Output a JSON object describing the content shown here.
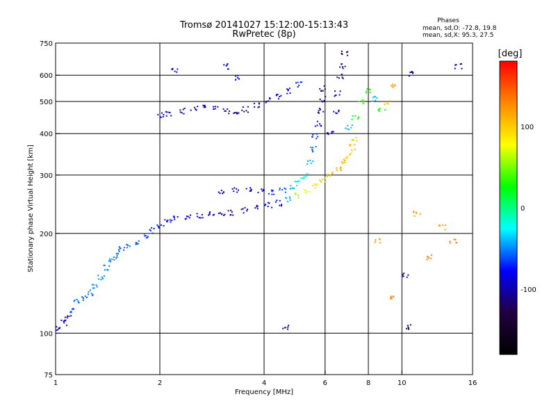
{
  "chart_data": {
    "type": "scatter",
    "title": "Tromsø 20141027 15:12:00-15:13:43",
    "subtitle": "RwPretec (8p)",
    "xlabel": "Frequency [MHz]",
    "ylabel": "Stationary phase Virtual Height [km]",
    "x_scale": "log",
    "y_scale": "log",
    "xlim": [
      1,
      16
    ],
    "ylim": [
      75,
      750
    ],
    "x_ticks": [
      "1",
      "2",
      "4",
      "6",
      "8",
      "10",
      "16"
    ],
    "y_ticks": [
      "75",
      "100",
      "200",
      "300",
      "400",
      "500",
      "600",
      "750"
    ],
    "x_grid": [
      2,
      4,
      6,
      8,
      10
    ],
    "y_grid": [
      100,
      200,
      300,
      400,
      500,
      600
    ],
    "grid": true,
    "stats": {
      "heading": "Phases",
      "line1": "mean, sd,O: -72.8, 19.8",
      "line2": "mean, sd,X:  95.3, 27.5"
    },
    "colorbar": {
      "label": "[deg]",
      "range": [
        -180,
        180
      ],
      "ticks": [
        "100",
        "0",
        "-100"
      ],
      "tick_values": [
        100,
        0,
        -100
      ],
      "colors": [
        "#ff0000",
        "#ff8800",
        "#ffff00",
        "#00ff00",
        "#00ffff",
        "#0000ff",
        "#200040",
        "#000000"
      ]
    },
    "series": [
      {
        "role": "o-mode low trace",
        "points": [
          [
            1.02,
            104,
            -100
          ],
          [
            1.05,
            108,
            -95
          ],
          [
            1.08,
            112,
            -100
          ],
          [
            1.12,
            118,
            -60
          ],
          [
            1.15,
            125,
            -55
          ],
          [
            1.2,
            128,
            -60
          ],
          [
            1.25,
            133,
            -55
          ],
          [
            1.3,
            140,
            -50
          ],
          [
            1.35,
            148,
            -50
          ],
          [
            1.4,
            158,
            -55
          ],
          [
            1.45,
            165,
            -50
          ],
          [
            1.5,
            172,
            -55
          ],
          [
            1.55,
            180,
            -60
          ],
          [
            1.6,
            185,
            -55
          ],
          [
            1.7,
            190,
            -60
          ],
          [
            1.8,
            197,
            -65
          ],
          [
            1.9,
            205,
            -70
          ],
          [
            2.0,
            212,
            -75
          ],
          [
            2.1,
            218,
            -75
          ],
          [
            2.2,
            222,
            -80
          ],
          [
            2.4,
            224,
            -85
          ],
          [
            2.6,
            228,
            -95
          ],
          [
            2.8,
            230,
            -100
          ],
          [
            3.0,
            230,
            -105
          ],
          [
            3.2,
            232,
            -110
          ],
          [
            3.5,
            236,
            -105
          ],
          [
            3.8,
            240,
            -100
          ],
          [
            4.1,
            244,
            -95
          ],
          [
            4.4,
            248,
            -80
          ],
          [
            4.7,
            255,
            -40
          ],
          [
            5.0,
            262,
            60
          ],
          [
            5.3,
            270,
            80
          ],
          [
            5.6,
            280,
            90
          ],
          [
            5.9,
            290,
            100
          ],
          [
            6.2,
            302,
            110
          ],
          [
            6.5,
            315,
            115
          ],
          [
            6.8,
            330,
            110
          ],
          [
            7.0,
            345,
            100
          ],
          [
            7.2,
            365,
            110
          ],
          [
            7.3,
            385,
            100
          ]
        ]
      },
      {
        "role": "o-mode upper trace",
        "points": [
          [
            2.0,
            455,
            -90
          ],
          [
            2.1,
            462,
            -95
          ],
          [
            2.3,
            470,
            -100
          ],
          [
            2.5,
            478,
            -100
          ],
          [
            2.7,
            482,
            -95
          ],
          [
            2.9,
            478,
            -90
          ],
          [
            3.1,
            470,
            -100
          ],
          [
            3.3,
            468,
            -110
          ],
          [
            3.5,
            475,
            -110
          ],
          [
            3.8,
            490,
            -105
          ],
          [
            4.1,
            505,
            -100
          ],
          [
            4.4,
            520,
            -90
          ],
          [
            4.7,
            540,
            -80
          ],
          [
            5.0,
            565,
            -70
          ]
        ]
      },
      {
        "role": "x-mode low trace",
        "points": [
          [
            3.0,
            270,
            -100
          ],
          [
            3.3,
            272,
            -95
          ],
          [
            3.6,
            272,
            -90
          ],
          [
            3.9,
            270,
            -80
          ],
          [
            4.2,
            268,
            -70
          ],
          [
            4.5,
            270,
            -60
          ],
          [
            4.8,
            275,
            -40
          ],
          [
            5.0,
            285,
            -30
          ],
          [
            5.2,
            300,
            -20
          ],
          [
            5.4,
            330,
            -40
          ],
          [
            5.5,
            360,
            -60
          ],
          [
            5.6,
            395,
            -70
          ],
          [
            5.7,
            430,
            -80
          ],
          [
            5.8,
            470,
            -100
          ],
          [
            5.85,
            510,
            -110
          ],
          [
            5.9,
            550,
            -120
          ]
        ]
      },
      {
        "role": "x-mode mid trace",
        "points": [
          [
            6.2,
            400,
            -100
          ],
          [
            6.4,
            470,
            -90
          ],
          [
            6.5,
            530,
            -100
          ],
          [
            6.6,
            600,
            -120
          ],
          [
            6.7,
            640,
            -110
          ],
          [
            6.8,
            700,
            -120
          ]
        ]
      },
      {
        "role": "x-mode upper trace",
        "points": [
          [
            7.0,
            420,
            -40
          ],
          [
            7.3,
            450,
            20
          ],
          [
            7.6,
            500,
            40
          ],
          [
            7.9,
            540,
            30
          ],
          [
            8.3,
            510,
            -40
          ],
          [
            8.7,
            470,
            30
          ],
          [
            9.0,
            500,
            100
          ],
          [
            9.3,
            560,
            120
          ]
        ]
      },
      {
        "role": "sparse scatter",
        "points": [
          [
            2.2,
            620,
            -80
          ],
          [
            3.1,
            640,
            -90
          ],
          [
            3.3,
            590,
            -80
          ],
          [
            4.6,
            105,
            -110
          ],
          [
            8.5,
            190,
            120
          ],
          [
            9.2,
            130,
            130
          ],
          [
            10.2,
            150,
            -110
          ],
          [
            10.5,
            105,
            -120
          ],
          [
            11.0,
            230,
            120
          ],
          [
            12.0,
            170,
            130
          ],
          [
            13.0,
            210,
            120
          ],
          [
            14.0,
            190,
            130
          ],
          [
            14.5,
            640,
            -120
          ],
          [
            10.6,
            610,
            -110
          ]
        ]
      }
    ]
  }
}
